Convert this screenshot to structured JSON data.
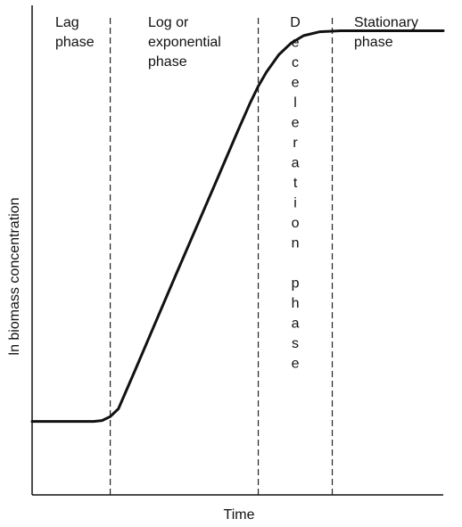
{
  "chart_data": {
    "type": "line",
    "title": "",
    "xlabel": "Time",
    "ylabel": "ln biomass concentration",
    "xlim": [
      0,
      100
    ],
    "ylim": [
      0,
      100
    ],
    "grid": false,
    "legend": "none",
    "series": [
      {
        "x": [
          0,
          15,
          17,
          19,
          21,
          25,
          35,
          45,
          50,
          53,
          55,
          57,
          60,
          63,
          66,
          70,
          75,
          80,
          85,
          90,
          100
        ],
        "y": [
          15,
          15,
          15.2,
          16,
          17.6,
          25.4,
          45,
          64.5,
          74.3,
          80,
          83.5,
          86.4,
          89.9,
          92.3,
          93.8,
          94.6,
          94.8,
          94.8,
          94.8,
          94.8,
          94.8
        ]
      }
    ],
    "phase_boundaries": [
      19,
      55,
      73
    ],
    "phases": [
      {
        "lines": [
          "Lag",
          "phase"
        ]
      },
      {
        "lines": [
          "Log or",
          "exponential",
          "phase"
        ]
      },
      {
        "letters": [
          "D",
          "e",
          "c",
          "e",
          "l",
          "e",
          "r",
          "a",
          "t",
          "i",
          "o",
          "n",
          "",
          "p",
          "h",
          "a",
          "s",
          "e"
        ]
      },
      {
        "lines": [
          "Stationary",
          "phase"
        ]
      }
    ],
    "colors": {
      "line": "#111111",
      "axis": "#111111",
      "boundary": "#222222"
    }
  }
}
